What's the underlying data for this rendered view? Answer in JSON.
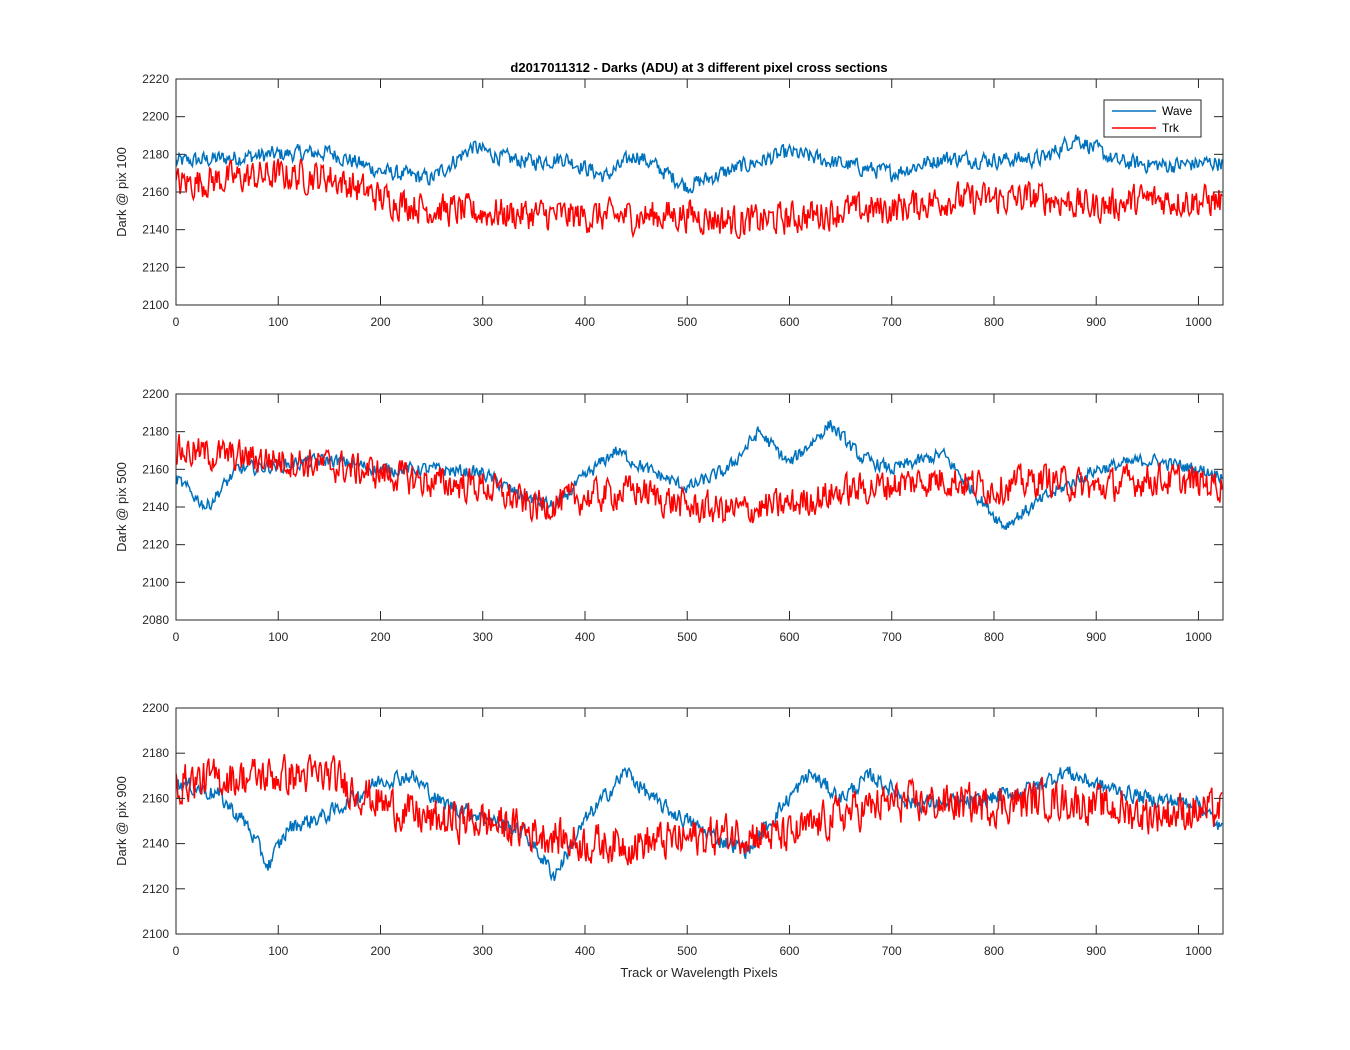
{
  "figure": {
    "title": "d2017011312 - Darks (ADU) at 3 different pixel cross sections",
    "xlabel": "Track or Wavelength Pixels"
  },
  "legend": {
    "placement": "top-right",
    "entries": [
      {
        "name": "Wave",
        "color": "#0072BD"
      },
      {
        "name": "Trk",
        "color": "#FF0000"
      }
    ]
  },
  "chart_data": [
    {
      "type": "line",
      "ylabel": "Dark @ pix 100",
      "xlim": [
        0,
        1024
      ],
      "ylim": [
        2100,
        2220
      ],
      "xticks": [
        0,
        100,
        200,
        300,
        400,
        500,
        600,
        700,
        800,
        900,
        1000
      ],
      "yticks": [
        2100,
        2120,
        2140,
        2160,
        2180,
        2200,
        2220
      ],
      "grid": false,
      "legend": true,
      "series": [
        {
          "name": "Wave",
          "color": "#0072BD",
          "profile": [
            [
              0,
              2176
            ],
            [
              50,
              2178
            ],
            [
              100,
              2180
            ],
            [
              150,
              2181
            ],
            [
              200,
              2171
            ],
            [
              250,
              2167
            ],
            [
              290,
              2184
            ],
            [
              320,
              2178
            ],
            [
              350,
              2176
            ],
            [
              380,
              2178
            ],
            [
              420,
              2168
            ],
            [
              450,
              2180
            ],
            [
              500,
              2163
            ],
            [
              550,
              2173
            ],
            [
              600,
              2181
            ],
            [
              650,
              2175
            ],
            [
              700,
              2170
            ],
            [
              750,
              2178
            ],
            [
              800,
              2177
            ],
            [
              850,
              2178
            ],
            [
              880,
              2189
            ],
            [
              920,
              2176
            ],
            [
              970,
              2174
            ],
            [
              1023,
              2176
            ]
          ],
          "noise": 6
        },
        {
          "name": "Trk",
          "color": "#FF0000",
          "profile": [
            [
              0,
              2164
            ],
            [
              50,
              2167
            ],
            [
              100,
              2169
            ],
            [
              150,
              2168
            ],
            [
              200,
              2157
            ],
            [
              250,
              2151
            ],
            [
              300,
              2149
            ],
            [
              350,
              2148
            ],
            [
              400,
              2147
            ],
            [
              450,
              2147
            ],
            [
              500,
              2148
            ],
            [
              550,
              2144
            ],
            [
              600,
              2146
            ],
            [
              650,
              2150
            ],
            [
              700,
              2151
            ],
            [
              750,
              2156
            ],
            [
              800,
              2156
            ],
            [
              850,
              2157
            ],
            [
              900,
              2152
            ],
            [
              950,
              2156
            ],
            [
              1023,
              2155
            ]
          ],
          "noise": 12
        }
      ]
    },
    {
      "type": "line",
      "ylabel": "Dark @ pix 500",
      "xlim": [
        0,
        1024
      ],
      "ylim": [
        2080,
        2200
      ],
      "xticks": [
        0,
        100,
        200,
        300,
        400,
        500,
        600,
        700,
        800,
        900,
        1000
      ],
      "yticks": [
        2080,
        2100,
        2120,
        2140,
        2160,
        2180,
        2200
      ],
      "grid": false,
      "legend": false,
      "series": [
        {
          "name": "Wave",
          "color": "#0072BD",
          "profile": [
            [
              0,
              2155
            ],
            [
              30,
              2140
            ],
            [
              60,
              2160
            ],
            [
              100,
              2162
            ],
            [
              150,
              2165
            ],
            [
              200,
              2160
            ],
            [
              250,
              2160
            ],
            [
              300,
              2158
            ],
            [
              330,
              2148
            ],
            [
              370,
              2140
            ],
            [
              400,
              2156
            ],
            [
              430,
              2170
            ],
            [
              460,
              2160
            ],
            [
              500,
              2150
            ],
            [
              540,
              2160
            ],
            [
              570,
              2180
            ],
            [
              600,
              2163
            ],
            [
              640,
              2184
            ],
            [
              670,
              2166
            ],
            [
              700,
              2160
            ],
            [
              750,
              2168
            ],
            [
              790,
              2142
            ],
            [
              810,
              2130
            ],
            [
              850,
              2145
            ],
            [
              900,
              2160
            ],
            [
              950,
              2165
            ],
            [
              1000,
              2160
            ],
            [
              1023,
              2157
            ]
          ],
          "noise": 5
        },
        {
          "name": "Trk",
          "color": "#FF0000",
          "profile": [
            [
              0,
              2170
            ],
            [
              50,
              2167
            ],
            [
              100,
              2165
            ],
            [
              150,
              2162
            ],
            [
              200,
              2158
            ],
            [
              250,
              2153
            ],
            [
              300,
              2151
            ],
            [
              350,
              2140
            ],
            [
              400,
              2145
            ],
            [
              450,
              2149
            ],
            [
              500,
              2140
            ],
            [
              550,
              2138
            ],
            [
              600,
              2141
            ],
            [
              650,
              2148
            ],
            [
              700,
              2152
            ],
            [
              750,
              2155
            ],
            [
              800,
              2150
            ],
            [
              850,
              2155
            ],
            [
              900,
              2150
            ],
            [
              950,
              2155
            ],
            [
              1023,
              2152
            ]
          ],
          "noise": 12
        }
      ]
    },
    {
      "type": "line",
      "ylabel": "Dark @ pix 900",
      "xlim": [
        0,
        1024
      ],
      "ylim": [
        2100,
        2200
      ],
      "xticks": [
        0,
        100,
        200,
        300,
        400,
        500,
        600,
        700,
        800,
        900,
        1000
      ],
      "yticks": [
        2100,
        2120,
        2140,
        2160,
        2180,
        2200
      ],
      "grid": false,
      "legend": false,
      "series": [
        {
          "name": "Wave",
          "color": "#0072BD",
          "profile": [
            [
              0,
              2167
            ],
            [
              40,
              2162
            ],
            [
              70,
              2148
            ],
            [
              90,
              2130
            ],
            [
              110,
              2147
            ],
            [
              150,
              2153
            ],
            [
              200,
              2168
            ],
            [
              230,
              2170
            ],
            [
              260,
              2158
            ],
            [
              300,
              2152
            ],
            [
              340,
              2145
            ],
            [
              370,
              2126
            ],
            [
              400,
              2150
            ],
            [
              440,
              2172
            ],
            [
              470,
              2158
            ],
            [
              500,
              2150
            ],
            [
              530,
              2142
            ],
            [
              560,
              2137
            ],
            [
              590,
              2155
            ],
            [
              620,
              2171
            ],
            [
              650,
              2160
            ],
            [
              680,
              2170
            ],
            [
              720,
              2158
            ],
            [
              780,
              2158
            ],
            [
              840,
              2165
            ],
            [
              870,
              2172
            ],
            [
              900,
              2166
            ],
            [
              950,
              2160
            ],
            [
              1000,
              2158
            ],
            [
              1023,
              2146
            ]
          ],
          "noise": 5
        },
        {
          "name": "Trk",
          "color": "#FF0000",
          "profile": [
            [
              0,
              2167
            ],
            [
              50,
              2169
            ],
            [
              100,
              2170
            ],
            [
              150,
              2170
            ],
            [
              200,
              2158
            ],
            [
              250,
              2150
            ],
            [
              300,
              2150
            ],
            [
              350,
              2145
            ],
            [
              400,
              2140
            ],
            [
              450,
              2140
            ],
            [
              500,
              2142
            ],
            [
              550,
              2145
            ],
            [
              600,
              2143
            ],
            [
              650,
              2153
            ],
            [
              700,
              2158
            ],
            [
              750,
              2158
            ],
            [
              800,
              2157
            ],
            [
              850,
              2160
            ],
            [
              900,
              2157
            ],
            [
              950,
              2153
            ],
            [
              1023,
              2155
            ]
          ],
          "noise": 12
        }
      ]
    }
  ]
}
